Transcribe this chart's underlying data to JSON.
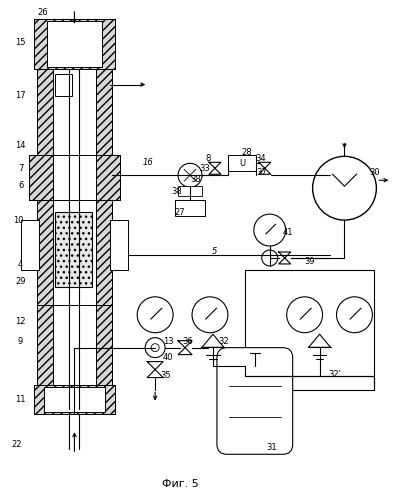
{
  "title": "Фиг. 5",
  "bg_color": "#ffffff",
  "line_color": "#000000",
  "fig_width": 3.99,
  "fig_height": 5.0,
  "dpi": 100
}
